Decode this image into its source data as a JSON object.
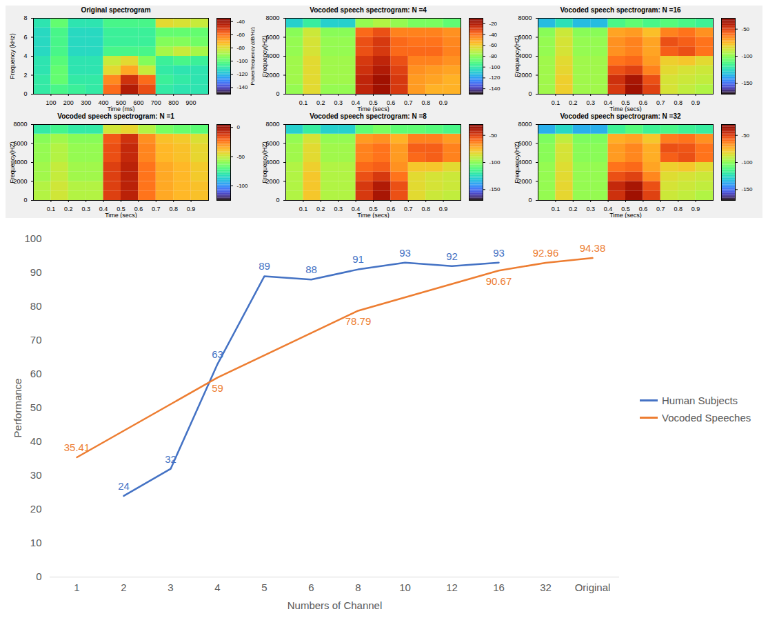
{
  "chart_data": [
    {
      "type": "heatmap",
      "title": "Original spectrogram",
      "x_label": "Time (ms)",
      "y_label": "Frequency (kHz)",
      "xlim": [
        0,
        1000
      ],
      "xticks": [
        100,
        200,
        300,
        400,
        500,
        600,
        700,
        800,
        900
      ],
      "ylim": [
        0,
        8
      ],
      "yticks": [
        0,
        2,
        4,
        6,
        8
      ],
      "x_bins": [
        0,
        100,
        200,
        300,
        400,
        500,
        600,
        700,
        800,
        900,
        1000
      ],
      "y_bins": [
        0,
        1,
        2,
        3,
        4,
        5,
        6,
        7,
        8
      ],
      "cells": [
        [
          -110,
          -105,
          -108,
          -110,
          -60,
          -45,
          -55,
          -110,
          -112,
          -112
        ],
        [
          -110,
          -100,
          -110,
          -110,
          -65,
          -50,
          -60,
          -108,
          -110,
          -112
        ],
        [
          -112,
          -100,
          -112,
          -112,
          -80,
          -70,
          -85,
          -110,
          -112,
          -112
        ],
        [
          -112,
          -102,
          -112,
          -112,
          -85,
          -80,
          -95,
          -108,
          -105,
          -108
        ],
        [
          -115,
          -105,
          -115,
          -115,
          -105,
          -105,
          -105,
          -90,
          -85,
          -90
        ],
        [
          -115,
          -105,
          -115,
          -115,
          -108,
          -108,
          -108,
          -95,
          -95,
          -98
        ],
        [
          -115,
          -105,
          -115,
          -115,
          -108,
          -108,
          -108,
          -100,
          -100,
          -100
        ],
        [
          -112,
          -100,
          -112,
          -112,
          -105,
          -105,
          -105,
          -80,
          -82,
          -85
        ]
      ],
      "colorbar": {
        "label": "Power/frequency (dB/Hz)",
        "range": [
          -150,
          -35
        ],
        "ticks": [
          -40,
          -60,
          -80,
          -100,
          -120,
          -140
        ]
      }
    },
    {
      "type": "heatmap",
      "title": "Vocoded speech spectrogram: N =4",
      "x_label": "Time (secs)",
      "y_label": "Frequency(HZ)",
      "xlim": [
        0,
        1
      ],
      "xticks": [
        0.1,
        0.2,
        0.3,
        0.4,
        0.5,
        0.6,
        0.7,
        0.8,
        0.9
      ],
      "ylim": [
        0,
        8000
      ],
      "yticks": [
        0,
        2000,
        4000,
        6000,
        8000
      ],
      "x_bins": [
        0,
        0.1,
        0.2,
        0.3,
        0.4,
        0.5,
        0.6,
        0.7,
        0.8,
        0.9,
        1
      ],
      "y_bins": [
        0,
        1000,
        2000,
        3000,
        4000,
        5000,
        6000,
        7000,
        8000
      ],
      "cells": [
        [
          -80,
          -65,
          -80,
          -80,
          -25,
          -18,
          -30,
          -50,
          -55,
          -55
        ],
        [
          -78,
          -65,
          -78,
          -78,
          -25,
          -18,
          -30,
          -50,
          -52,
          -55
        ],
        [
          -78,
          -65,
          -78,
          -78,
          -28,
          -22,
          -32,
          -48,
          -50,
          -52
        ],
        [
          -78,
          -65,
          -78,
          -78,
          -30,
          -25,
          -35,
          -45,
          -45,
          -48
        ],
        [
          -80,
          -68,
          -80,
          -80,
          -35,
          -30,
          -40,
          -40,
          -40,
          -45
        ],
        [
          -80,
          -68,
          -80,
          -80,
          -35,
          -30,
          -40,
          -42,
          -42,
          -46
        ],
        [
          -82,
          -70,
          -82,
          -82,
          -40,
          -35,
          -45,
          -45,
          -45,
          -48
        ],
        [
          -110,
          -100,
          -110,
          -110,
          -80,
          -75,
          -80,
          -85,
          -85,
          -90
        ]
      ],
      "colorbar": {
        "range": [
          -150,
          -10
        ],
        "ticks": [
          -20,
          -40,
          -60,
          -80,
          -100,
          -120,
          -140
        ]
      }
    },
    {
      "type": "heatmap",
      "title": "Vocoded speech spectrogram: N =16",
      "x_label": "Time (secs)",
      "y_label": "Frequency(HZ)",
      "xlim": [
        0,
        1
      ],
      "xticks": [
        0.1,
        0.2,
        0.3,
        0.4,
        0.5,
        0.6,
        0.7,
        0.8,
        0.9
      ],
      "ylim": [
        0,
        8000
      ],
      "yticks": [
        0,
        2000,
        4000,
        6000,
        8000
      ],
      "x_bins": [
        0,
        0.1,
        0.2,
        0.3,
        0.4,
        0.5,
        0.6,
        0.7,
        0.8,
        0.9,
        1
      ],
      "y_bins": [
        0,
        1000,
        2000,
        3000,
        4000,
        5000,
        6000,
        7000,
        8000
      ],
      "cells": [
        [
          -98,
          -82,
          -98,
          -98,
          -50,
          -38,
          -52,
          -88,
          -92,
          -95
        ],
        [
          -98,
          -82,
          -98,
          -98,
          -48,
          -40,
          -55,
          -88,
          -90,
          -92
        ],
        [
          -98,
          -84,
          -98,
          -98,
          -55,
          -52,
          -65,
          -85,
          -88,
          -90
        ],
        [
          -98,
          -85,
          -98,
          -98,
          -62,
          -60,
          -70,
          -82,
          -80,
          -85
        ],
        [
          -100,
          -88,
          -100,
          -100,
          -68,
          -65,
          -72,
          -58,
          -55,
          -62
        ],
        [
          -100,
          -88,
          -100,
          -100,
          -68,
          -65,
          -72,
          -55,
          -58,
          -62
        ],
        [
          -102,
          -90,
          -102,
          -102,
          -72,
          -70,
          -78,
          -65,
          -62,
          -68
        ],
        [
          -135,
          -125,
          -135,
          -135,
          -115,
          -110,
          -115,
          -112,
          -115,
          -118
        ]
      ],
      "colorbar": {
        "range": [
          -170,
          -30
        ],
        "ticks": [
          -50,
          -100,
          -150
        ]
      }
    },
    {
      "type": "heatmap",
      "title": "Vocoded speech spectrogram: N =1",
      "x_label": "Time (secs)",
      "y_label": "Frequency(HZ)",
      "xlim": [
        0,
        1
      ],
      "xticks": [
        0.1,
        0.2,
        0.3,
        0.4,
        0.5,
        0.6,
        0.7,
        0.8,
        0.9
      ],
      "ylim": [
        0,
        8000
      ],
      "yticks": [
        0,
        2000,
        4000,
        6000,
        8000
      ],
      "x_bins": [
        0,
        0.1,
        0.2,
        0.3,
        0.4,
        0.5,
        0.6,
        0.7,
        0.8,
        0.9,
        1
      ],
      "y_bins": [
        0,
        1000,
        2000,
        3000,
        4000,
        5000,
        6000,
        7000,
        8000
      ],
      "cells": [
        [
          -55,
          -50,
          -55,
          -55,
          -15,
          -8,
          -25,
          -35,
          -38,
          -40
        ],
        [
          -55,
          -50,
          -55,
          -55,
          -15,
          -8,
          -25,
          -35,
          -38,
          -40
        ],
        [
          -58,
          -52,
          -58,
          -58,
          -15,
          -8,
          -25,
          -35,
          -38,
          -42
        ],
        [
          -58,
          -52,
          -58,
          -58,
          -15,
          -8,
          -25,
          -35,
          -38,
          -42
        ],
        [
          -60,
          -55,
          -60,
          -60,
          -18,
          -10,
          -28,
          -38,
          -40,
          -45
        ],
        [
          -60,
          -55,
          -60,
          -60,
          -18,
          -10,
          -28,
          -38,
          -40,
          -45
        ],
        [
          -62,
          -58,
          -62,
          -62,
          -20,
          -12,
          -30,
          -40,
          -42,
          -48
        ],
        [
          -80,
          -75,
          -80,
          -80,
          -50,
          -45,
          -55,
          -65,
          -68,
          -70
        ]
      ],
      "colorbar": {
        "range": [
          -125,
          5
        ],
        "ticks": [
          0,
          -50,
          -100
        ]
      }
    },
    {
      "type": "heatmap",
      "title": "Vocoded speech spectrogram: N =8",
      "x_label": "Time (secs)",
      "y_label": "Frequency(HZ)",
      "xlim": [
        0,
        1
      ],
      "xticks": [
        0.1,
        0.2,
        0.3,
        0.4,
        0.5,
        0.6,
        0.7,
        0.8,
        0.9
      ],
      "ylim": [
        0,
        8000
      ],
      "yticks": [
        0,
        2000,
        4000,
        6000,
        8000
      ],
      "x_bins": [
        0,
        0.1,
        0.2,
        0.3,
        0.4,
        0.5,
        0.6,
        0.7,
        0.8,
        0.9,
        1
      ],
      "y_bins": [
        0,
        1000,
        2000,
        3000,
        4000,
        5000,
        6000,
        7000,
        8000
      ],
      "cells": [
        [
          -95,
          -80,
          -95,
          -95,
          -50,
          -40,
          -55,
          -85,
          -90,
          -92
        ],
        [
          -95,
          -80,
          -95,
          -95,
          -50,
          -42,
          -55,
          -85,
          -88,
          -90
        ],
        [
          -95,
          -80,
          -95,
          -95,
          -55,
          -50,
          -62,
          -85,
          -88,
          -90
        ],
        [
          -95,
          -82,
          -95,
          -95,
          -60,
          -58,
          -68,
          -80,
          -80,
          -85
        ],
        [
          -98,
          -85,
          -98,
          -98,
          -65,
          -62,
          -70,
          -60,
          -58,
          -65
        ],
        [
          -98,
          -85,
          -98,
          -98,
          -65,
          -62,
          -70,
          -58,
          -58,
          -65
        ],
        [
          -100,
          -88,
          -100,
          -100,
          -70,
          -68,
          -75,
          -65,
          -65,
          -70
        ],
        [
          -130,
          -120,
          -130,
          -130,
          -110,
          -105,
          -110,
          -110,
          -112,
          -115
        ]
      ],
      "colorbar": {
        "range": [
          -170,
          -30
        ],
        "ticks": [
          -50,
          -100,
          -150
        ]
      }
    },
    {
      "type": "heatmap",
      "title": "Vocoded speech spectrogram: N =32",
      "x_label": "Time (secs)",
      "y_label": "Frequency(HZ)",
      "xlim": [
        0,
        1
      ],
      "xticks": [
        0.1,
        0.2,
        0.3,
        0.4,
        0.5,
        0.6,
        0.7,
        0.8,
        0.9
      ],
      "ylim": [
        0,
        8000
      ],
      "yticks": [
        0,
        2000,
        4000,
        6000,
        8000
      ],
      "x_bins": [
        0,
        0.1,
        0.2,
        0.3,
        0.4,
        0.5,
        0.6,
        0.7,
        0.8,
        0.9,
        1
      ],
      "y_bins": [
        0,
        1000,
        2000,
        3000,
        4000,
        5000,
        6000,
        7000,
        8000
      ],
      "cells": [
        [
          -100,
          -84,
          -100,
          -100,
          -48,
          -38,
          -52,
          -90,
          -92,
          -95
        ],
        [
          -100,
          -84,
          -100,
          -100,
          -46,
          -40,
          -55,
          -88,
          -90,
          -92
        ],
        [
          -100,
          -85,
          -100,
          -100,
          -55,
          -52,
          -66,
          -86,
          -88,
          -90
        ],
        [
          -100,
          -86,
          -100,
          -100,
          -62,
          -60,
          -72,
          -82,
          -80,
          -85
        ],
        [
          -102,
          -88,
          -102,
          -102,
          -70,
          -66,
          -74,
          -58,
          -55,
          -62
        ],
        [
          -102,
          -88,
          -102,
          -102,
          -70,
          -66,
          -74,
          -55,
          -56,
          -62
        ],
        [
          -104,
          -92,
          -104,
          -104,
          -74,
          -72,
          -80,
          -64,
          -62,
          -68
        ],
        [
          -138,
          -128,
          -138,
          -138,
          -118,
          -112,
          -118,
          -115,
          -118,
          -120
        ]
      ],
      "colorbar": {
        "range": [
          -170,
          -30
        ],
        "ticks": [
          -50,
          -100,
          -150
        ]
      }
    },
    {
      "type": "line",
      "x_label": "Numbers of Channel",
      "y_label": "Performance",
      "categories": [
        "1",
        "2",
        "3",
        "4",
        "5",
        "6",
        "8",
        "10",
        "12",
        "16",
        "32",
        "Original"
      ],
      "series": [
        {
          "name": "Human Subjects",
          "color": "#4472c4",
          "values": [
            null,
            24,
            32,
            63,
            89,
            88,
            91,
            93,
            92,
            93,
            null,
            null
          ]
        },
        {
          "name": "Vocoded Speeches",
          "color": "#ed7d31",
          "values": [
            35.41,
            null,
            null,
            59,
            null,
            null,
            78.79,
            null,
            null,
            90.67,
            92.96,
            94.38
          ]
        }
      ],
      "ylim": [
        0,
        100
      ],
      "yticks": [
        0,
        10,
        20,
        30,
        40,
        50,
        60,
        70,
        80,
        90,
        100
      ],
      "grid": false,
      "data_labels": true,
      "legend": "right"
    }
  ]
}
